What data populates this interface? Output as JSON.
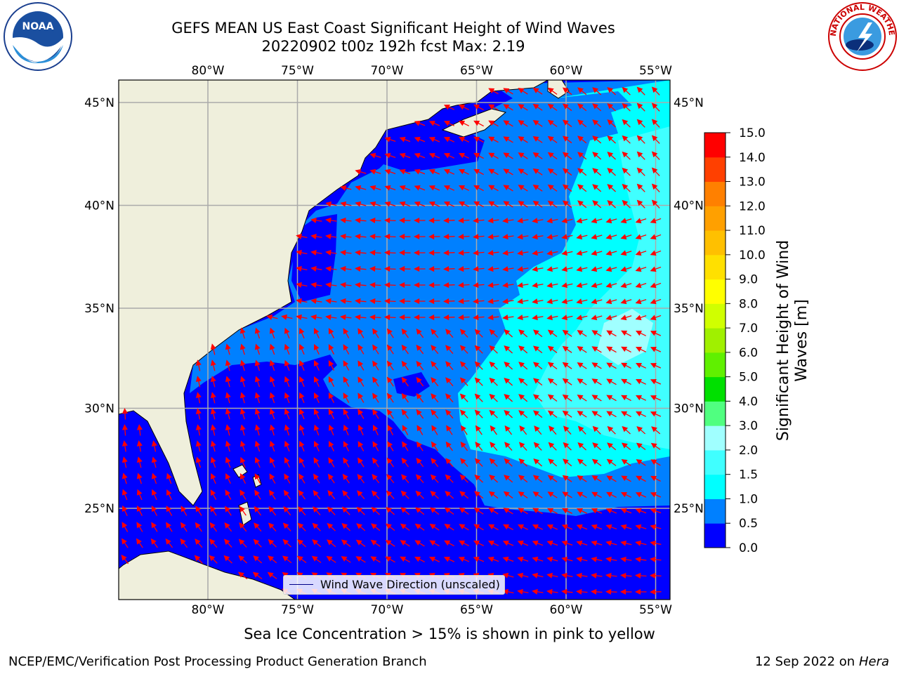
{
  "title": {
    "line1": "GEFS MEAN US East Coast Significant Height of Wind Waves",
    "line2": "20220902 t00z 192h fcst   Max: 2.19"
  },
  "logos": {
    "left": {
      "icon": "noaa-logo",
      "text": "NOAA"
    },
    "right": {
      "icon": "nws-logo",
      "text": "NATIONAL WEATHER SERVICE"
    }
  },
  "map": {
    "lon_labels": [
      "80°W",
      "75°W",
      "70°W",
      "65°W",
      "60°W",
      "55°W"
    ],
    "lat_labels": [
      "45°N",
      "40°N",
      "35°N",
      "30°N",
      "25°N"
    ],
    "extent": {
      "lon": [
        -85,
        -54.5
      ],
      "lat": [
        20.5,
        46
      ]
    },
    "land_color": "#efefdc",
    "arrow_color": "#ff0000"
  },
  "legend": {
    "label": "Wind Wave Direction (unscaled)"
  },
  "colorbar": {
    "label_line1": "Significant Height of Wind",
    "label_line2": "Waves [m]",
    "ticks": [
      "0.0",
      "0.5",
      "1.0",
      "1.5",
      "2.0",
      "3.0",
      "4.0",
      "5.0",
      "6.0",
      "7.0",
      "8.0",
      "9.0",
      "10.0",
      "11.0",
      "12.0",
      "13.0",
      "14.0",
      "15.0"
    ],
    "colors": [
      "#0000ff",
      "#0080ff",
      "#00ffff",
      "#40ffff",
      "#a0ffff",
      "#50ff80",
      "#00e000",
      "#60f000",
      "#a0f000",
      "#d0ff00",
      "#ffff00",
      "#ffe000",
      "#ffc000",
      "#ffa000",
      "#ff8000",
      "#ff4000",
      "#ff0000"
    ]
  },
  "footer": {
    "ice_note": "Sea Ice Concentration > 15% is shown in pink to yellow",
    "credit": "NCEP/EMC/Verification Post Processing Product Generation Branch",
    "date": "12 Sep 2022 on",
    "host": "Hera"
  }
}
